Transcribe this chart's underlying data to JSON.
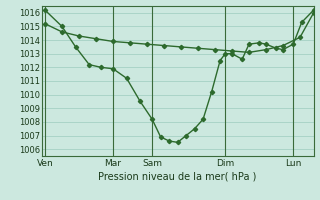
{
  "background_color": "#cce8df",
  "grid_color": "#aad4c8",
  "line_color": "#2d6a2d",
  "marker_color": "#2d6a2d",
  "xlabel": "Pression niveau de la mer( hPa )",
  "ylim": [
    1005.5,
    1016.5
  ],
  "xlim": [
    0,
    16
  ],
  "yticks": [
    1006,
    1007,
    1008,
    1009,
    1010,
    1011,
    1012,
    1013,
    1014,
    1015,
    1016
  ],
  "day_labels": [
    "Ven",
    "Mar",
    "Sam",
    "Dim",
    "Lun"
  ],
  "day_positions": [
    0.2,
    4.2,
    6.5,
    10.8,
    14.8
  ],
  "vline_positions": [
    0.2,
    4.2,
    6.5,
    10.8,
    14.8
  ],
  "line_straight_x": [
    0.2,
    1.2,
    2.2,
    3.2,
    4.2,
    5.2,
    6.2,
    7.2,
    8.2,
    9.2,
    10.2,
    11.2,
    12.2,
    13.2,
    14.2,
    15.2,
    16.0
  ],
  "line_straight_y": [
    1015.2,
    1014.6,
    1014.3,
    1014.1,
    1013.9,
    1013.8,
    1013.7,
    1013.6,
    1013.5,
    1013.4,
    1013.3,
    1013.2,
    1013.1,
    1013.3,
    1013.6,
    1014.2,
    1016.0
  ],
  "line_dip_x": [
    0.2,
    1.2,
    2.0,
    2.8,
    3.5,
    4.2,
    5.0,
    5.8,
    6.5,
    7.0,
    7.5,
    8.0,
    8.5,
    9.0,
    9.5,
    10.0,
    10.5,
    10.8,
    11.2,
    11.8,
    12.2,
    12.8,
    13.2,
    13.8,
    14.2,
    14.8,
    15.3,
    16.0
  ],
  "line_dip_y": [
    1016.2,
    1015.0,
    1013.5,
    1012.2,
    1012.0,
    1011.9,
    1011.2,
    1009.5,
    1008.2,
    1006.9,
    1006.6,
    1006.5,
    1007.0,
    1007.5,
    1008.2,
    1010.2,
    1012.5,
    1013.0,
    1013.0,
    1012.6,
    1013.7,
    1013.8,
    1013.7,
    1013.4,
    1013.3,
    1013.7,
    1015.3,
    1016.2
  ]
}
